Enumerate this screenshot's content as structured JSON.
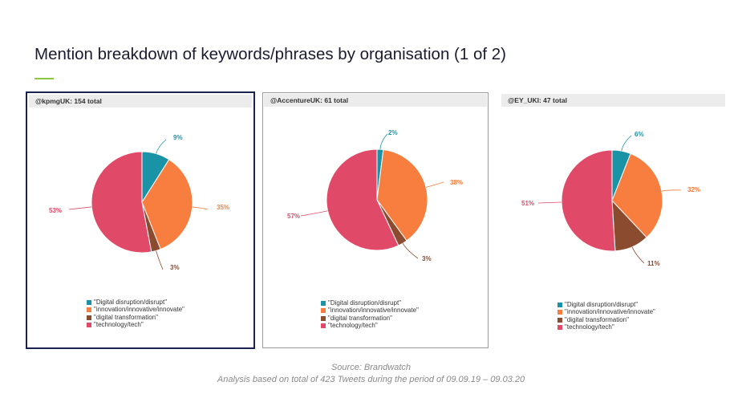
{
  "title": "Mention breakdown of keywords/phrases by organisation (1 of 2)",
  "legend_labels": [
    "\"Digital disruption/disrupt\"",
    "\"innovation/innovative/innovate\"",
    "\"digital transformation\"",
    "\"technology/tech\""
  ],
  "colors": {
    "digital_disruption": "#1b93a6",
    "innovation": "#f77e3f",
    "digital_transformation": "#8b4b2f",
    "technology": "#e04a68",
    "accent": "#8dc63f",
    "panel_border_selected": "#1b2250"
  },
  "chart_data": [
    {
      "type": "pie",
      "title": "@kpmgUK: 154 total",
      "categories": [
        "\"Digital disruption/disrupt\"",
        "\"innovation/innovative/innovate\"",
        "\"digital transformation\"",
        "\"technology/tech\""
      ],
      "values": [
        9,
        35,
        3,
        53
      ],
      "labels": [
        "9%",
        "35%",
        "3%",
        "53%"
      ],
      "legend": "bottom"
    },
    {
      "type": "pie",
      "title": "@AccentureUK: 61 total",
      "categories": [
        "\"Digital disruption/disrupt\"",
        "\"innovation/innovative/innovate\"",
        "\"digital transformation\"",
        "\"technology/tech\""
      ],
      "values": [
        2,
        38,
        3,
        57
      ],
      "labels": [
        "2%",
        "38%",
        "3%",
        "57%"
      ],
      "legend": "bottom"
    },
    {
      "type": "pie",
      "title": "@EY_UKI: 47 total",
      "categories": [
        "\"Digital disruption/disrupt\"",
        "\"innovation/innovative/innovate\"",
        "\"digital transformation\"",
        "\"technology/tech\""
      ],
      "values": [
        6,
        32,
        11,
        51
      ],
      "labels": [
        "6%",
        "32%",
        "11%",
        "51%"
      ],
      "legend": "bottom"
    }
  ],
  "footer": {
    "source": "Source: Brandwatch",
    "note": "Analysis based on total of 423 Tweets during the period of 09.09.19 – 09.03.20"
  }
}
